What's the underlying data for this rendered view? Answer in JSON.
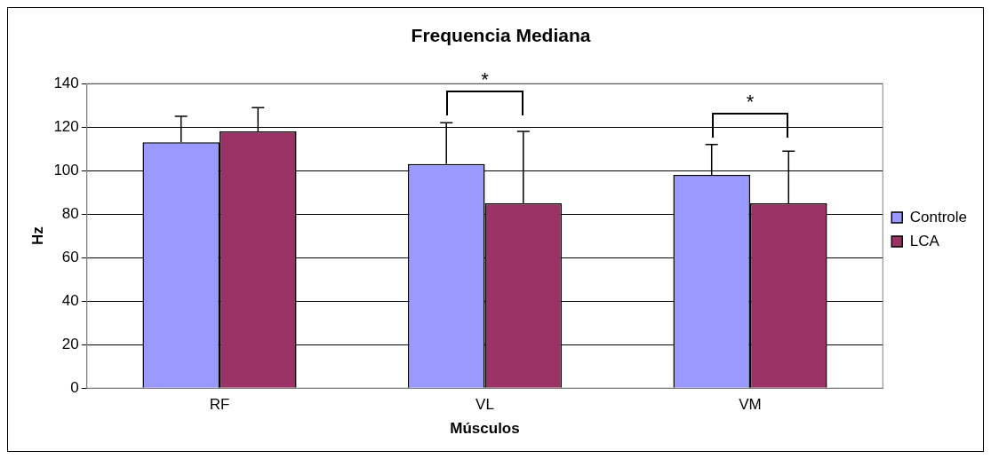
{
  "chart_data": {
    "type": "bar",
    "title": "Frequencia Mediana",
    "xlabel": "Músculos",
    "ylabel": "Hz",
    "categories": [
      "RF",
      "VL",
      "VM"
    ],
    "series": [
      {
        "name": "Controle",
        "color": "#9999ff",
        "values": [
          113,
          103,
          98
        ],
        "errors": [
          [
            113,
            125
          ],
          [
            103,
            122
          ],
          [
            98,
            112
          ]
        ]
      },
      {
        "name": "LCA",
        "color": "#993366",
        "values": [
          118,
          85,
          85
        ],
        "errors": [
          [
            118,
            129
          ],
          [
            85,
            118
          ],
          [
            85,
            109
          ]
        ]
      }
    ],
    "ylim": [
      0,
      140
    ],
    "yticks": [
      0,
      20,
      40,
      60,
      80,
      100,
      120,
      140
    ],
    "grid": "y",
    "legend": "right",
    "annotations": [
      "*",
      "*"
    ]
  }
}
